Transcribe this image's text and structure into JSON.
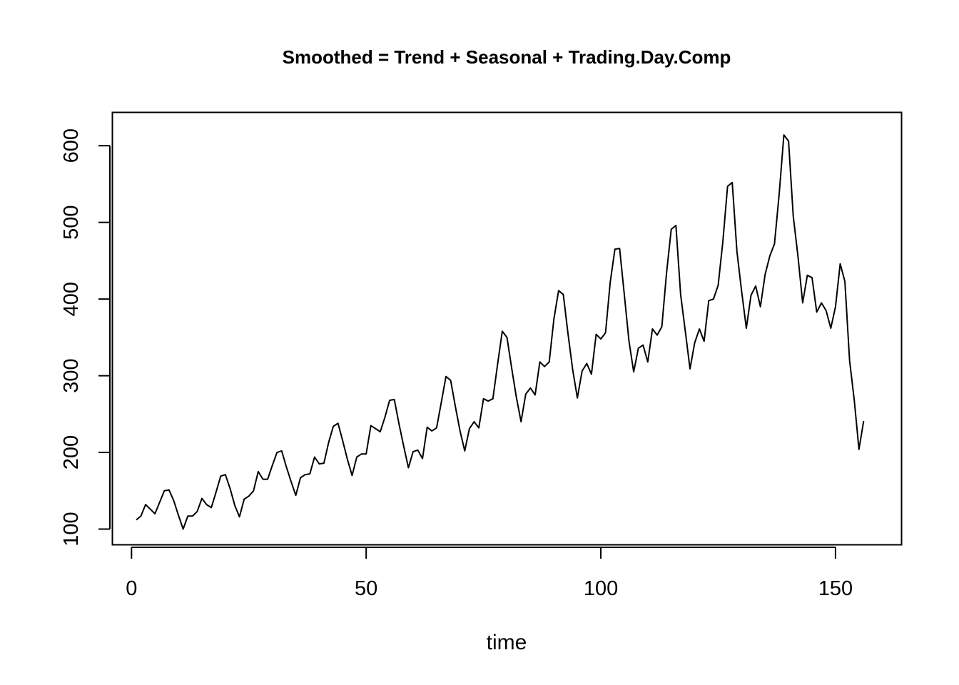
{
  "chart_data": {
    "type": "line",
    "title": "Smoothed = Trend + Seasonal + Trading.Day.Comp",
    "xlabel": "time",
    "ylabel": "",
    "xlim": [
      -4,
      164
    ],
    "ylim": [
      80,
      643
    ],
    "xticks": [
      0,
      50,
      100,
      150
    ],
    "yticks": [
      100,
      200,
      300,
      400,
      500,
      600
    ],
    "grid": false,
    "legend": "none",
    "line_color": "#000000",
    "series": [
      {
        "x": [
          1,
          2,
          3,
          4,
          5,
          6,
          7,
          8,
          9,
          10,
          11,
          12,
          13,
          14,
          15,
          16,
          17,
          18,
          19,
          20,
          21,
          22,
          23,
          24,
          25,
          26,
          27,
          28,
          29,
          30,
          31,
          32,
          33,
          34,
          35,
          36,
          37,
          38,
          39,
          40,
          41,
          42,
          43,
          44,
          45,
          46,
          47,
          48,
          49,
          50,
          51,
          52,
          53,
          54,
          55,
          56,
          57,
          58,
          59,
          60,
          61,
          62,
          63,
          64,
          65,
          66,
          67,
          68,
          69,
          70,
          71,
          72,
          73,
          74,
          75,
          76,
          77,
          78,
          79,
          80,
          81,
          82,
          83,
          84,
          85,
          86,
          87,
          88,
          89,
          90,
          91,
          92,
          93,
          94,
          95,
          96,
          97,
          98,
          99,
          100,
          101,
          102,
          103,
          104,
          105,
          106,
          107,
          108,
          109,
          110,
          111,
          112,
          113,
          114,
          115,
          116,
          117,
          118,
          119,
          120,
          121,
          122,
          123,
          124,
          125,
          126,
          127,
          128,
          129,
          130,
          131,
          132,
          133,
          134,
          135,
          136,
          137,
          138,
          139,
          140,
          141,
          142,
          143,
          144,
          145,
          146,
          147,
          148,
          149,
          150,
          151,
          152,
          153,
          154,
          155,
          156
        ],
        "values": [
          112,
          117,
          132,
          126,
          120,
          135,
          150,
          151,
          137,
          118,
          100,
          117,
          117,
          123,
          140,
          132,
          128,
          148,
          169,
          171,
          153,
          131,
          116,
          139,
          143,
          150,
          175,
          165,
          165,
          183,
          200,
          202,
          181,
          162,
          144,
          167,
          171,
          172,
          194,
          185,
          186,
          213,
          234,
          238,
          215,
          191,
          170,
          194,
          198,
          198,
          235,
          231,
          227,
          246,
          268,
          269,
          237,
          208,
          180,
          201,
          203,
          192,
          233,
          228,
          232,
          265,
          299,
          294,
          260,
          228,
          202,
          231,
          240,
          232,
          270,
          267,
          270,
          315,
          358,
          350,
          310,
          272,
          240,
          276,
          284,
          275,
          318,
          312,
          318,
          374,
          411,
          406,
          355,
          308,
          271,
          306,
          316,
          302,
          354,
          348,
          356,
          422,
          465,
          466,
          406,
          345,
          305,
          336,
          340,
          318,
          361,
          353,
          364,
          434,
          491,
          496,
          406,
          358,
          309,
          343,
          361,
          345,
          398,
          400,
          418,
          475,
          547,
          552,
          462,
          410,
          362,
          405,
          417,
          390,
          432,
          456,
          472,
          537,
          614,
          606,
          508,
          456,
          395,
          431,
          428,
          383,
          395,
          385,
          362,
          390,
          446,
          423,
          320,
          268,
          204,
          241
        ]
      }
    ]
  }
}
